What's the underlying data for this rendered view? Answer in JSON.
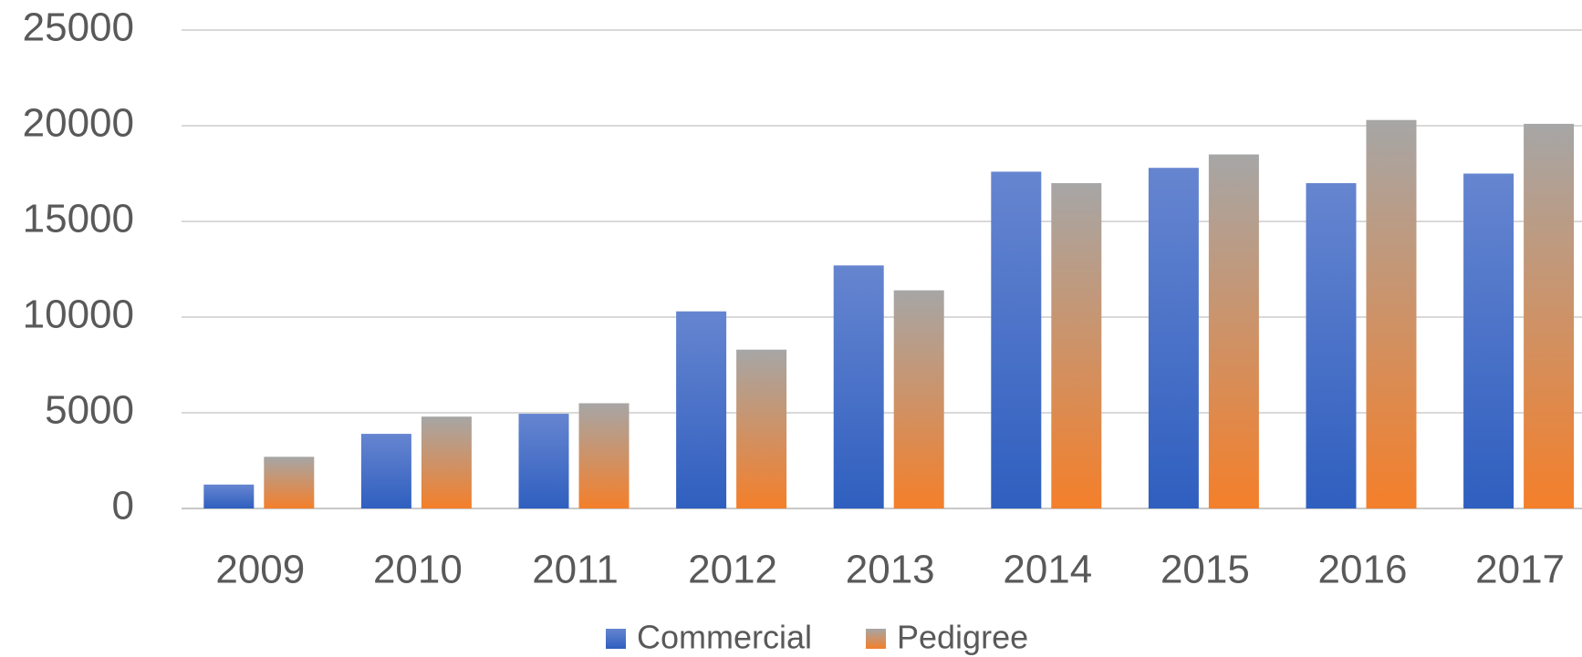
{
  "chart_data": {
    "type": "bar",
    "categories": [
      "2009",
      "2010",
      "2011",
      "2012",
      "2013",
      "2014",
      "2015",
      "2016",
      "2017"
    ],
    "series": [
      {
        "name": "Commercial",
        "color": "#2f5fbf",
        "color_top": "#6685d0",
        "values": [
          1250,
          3900,
          4950,
          10300,
          12700,
          17600,
          17800,
          17000,
          17500
        ]
      },
      {
        "name": "Pedigree",
        "color": "#f47f2a",
        "color_top": "#a6a6a6",
        "values": [
          2700,
          4800,
          5500,
          8300,
          11400,
          17000,
          18500,
          20300,
          20100
        ]
      }
    ],
    "ylim": [
      0,
      25000
    ],
    "yticks": [
      0,
      5000,
      10000,
      15000,
      20000,
      25000
    ],
    "grid": true,
    "legend": "bottom"
  }
}
